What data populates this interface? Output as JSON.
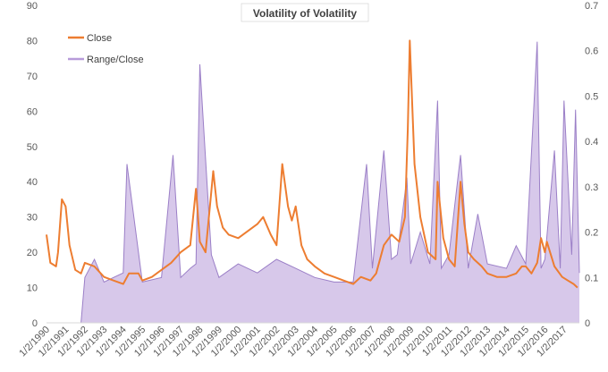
{
  "chart_data": {
    "type": "line",
    "title": "Volatility of Volatility",
    "x_tick_labels": [
      "1/2/1990",
      "1/2/1991",
      "1/2/1992",
      "1/2/1993",
      "1/2/1994",
      "1/2/1995",
      "1/2/1996",
      "1/2/1997",
      "1/2/1998",
      "1/2/1999",
      "1/2/2000",
      "1/2/2001",
      "1/2/2002",
      "1/2/2003",
      "1/2/2004",
      "1/2/2005",
      "1/2/2006",
      "1/2/2007",
      "1/2/2008",
      "1/2/2009",
      "1/2/2010",
      "1/2/2011",
      "1/2/2012",
      "1/2/2013",
      "1/2/2014",
      "1/2/2015",
      "1/2/2016",
      "1/2/2017"
    ],
    "y_left": {
      "min": 0,
      "max": 90,
      "ticks": [
        "0",
        "10",
        "20",
        "30",
        "40",
        "50",
        "60",
        "70",
        "80",
        "90"
      ]
    },
    "y_right": {
      "min": 0,
      "max": 0.7,
      "ticks": [
        "0",
        "0.1",
        "0.2",
        "0.3",
        "0.4",
        "0.5",
        "0.6",
        "0.7"
      ]
    },
    "legend_placement": "top-left",
    "grid": false,
    "series": [
      {
        "name": "Close",
        "axis": "left",
        "color": "#ED7D31",
        "x": [
          1990.0,
          1990.2,
          1990.5,
          1990.6,
          1990.8,
          1991.0,
          1991.2,
          1991.5,
          1991.8,
          1992.0,
          1992.5,
          1993.0,
          1993.5,
          1994.0,
          1994.3,
          1994.8,
          1995.0,
          1995.5,
          1996.0,
          1996.5,
          1997.0,
          1997.5,
          1997.8,
          1998.0,
          1998.3,
          1998.7,
          1998.9,
          1999.2,
          1999.5,
          2000.0,
          2000.5,
          2001.0,
          2001.3,
          2001.7,
          2002.0,
          2002.3,
          2002.6,
          2002.8,
          2003.0,
          2003.3,
          2003.6,
          2004.0,
          2004.5,
          2005.0,
          2005.5,
          2006.0,
          2006.4,
          2006.9,
          2007.2,
          2007.6,
          2008.0,
          2008.4,
          2008.7,
          2008.85,
          2008.95,
          2009.2,
          2009.5,
          2009.9,
          2010.3,
          2010.4,
          2010.7,
          2011.0,
          2011.3,
          2011.6,
          2011.8,
          2012.0,
          2012.3,
          2012.7,
          2013.0,
          2013.5,
          2014.0,
          2014.5,
          2014.8,
          2015.0,
          2015.3,
          2015.6,
          2015.8,
          2016.0,
          2016.1,
          2016.5,
          2016.9,
          2017.2,
          2017.5,
          2017.7
        ],
        "y": [
          25,
          17,
          16,
          20,
          35,
          33,
          22,
          15,
          14,
          17,
          16,
          13,
          12,
          11,
          14,
          14,
          12,
          13,
          15,
          17,
          20,
          22,
          38,
          23,
          20,
          43,
          33,
          27,
          25,
          24,
          26,
          28,
          30,
          25,
          22,
          45,
          33,
          29,
          33,
          22,
          18,
          16,
          14,
          13,
          12,
          11,
          13,
          12,
          14,
          22,
          25,
          23,
          30,
          55,
          80,
          45,
          30,
          20,
          18,
          40,
          24,
          18,
          16,
          40,
          28,
          20,
          18,
          16,
          14,
          13,
          13,
          14,
          16,
          16,
          14,
          17,
          24,
          20,
          23,
          16,
          13,
          12,
          11,
          10
        ]
      },
      {
        "name": "Range/Close",
        "axis": "right",
        "color": "#B79BD9",
        "x": [
          1990.0,
          1991.5,
          1991.8,
          1992.0,
          1992.5,
          1993.0,
          1994.0,
          1994.2,
          1995.0,
          1996.0,
          1996.6,
          1997.0,
          1997.5,
          1997.8,
          1998.0,
          1998.6,
          1999.0,
          2000.0,
          2001.0,
          2002.0,
          2003.0,
          2004.0,
          2005.0,
          2006.0,
          2006.7,
          2007.0,
          2007.6,
          2008.0,
          2008.3,
          2008.8,
          2009.0,
          2009.5,
          2010.0,
          2010.4,
          2010.6,
          2011.0,
          2011.6,
          2012.0,
          2012.5,
          2013.0,
          2014.0,
          2014.5,
          2015.0,
          2015.6,
          2015.8,
          2016.0,
          2016.5,
          2016.8,
          2017.0,
          2017.4,
          2017.6,
          2017.8
        ],
        "y": [
          0,
          0,
          0,
          0.1,
          0.14,
          0.09,
          0.11,
          0.35,
          0.09,
          0.1,
          0.37,
          0.1,
          0.12,
          0.13,
          0.57,
          0.15,
          0.1,
          0.13,
          0.11,
          0.14,
          0.12,
          0.1,
          0.09,
          0.09,
          0.35,
          0.12,
          0.38,
          0.14,
          0.15,
          0.32,
          0.13,
          0.2,
          0.13,
          0.49,
          0.12,
          0.15,
          0.37,
          0.12,
          0.24,
          0.13,
          0.12,
          0.17,
          0.13,
          0.62,
          0.12,
          0.14,
          0.38,
          0.12,
          0.49,
          0.15,
          0.47,
          0.11
        ]
      }
    ]
  }
}
